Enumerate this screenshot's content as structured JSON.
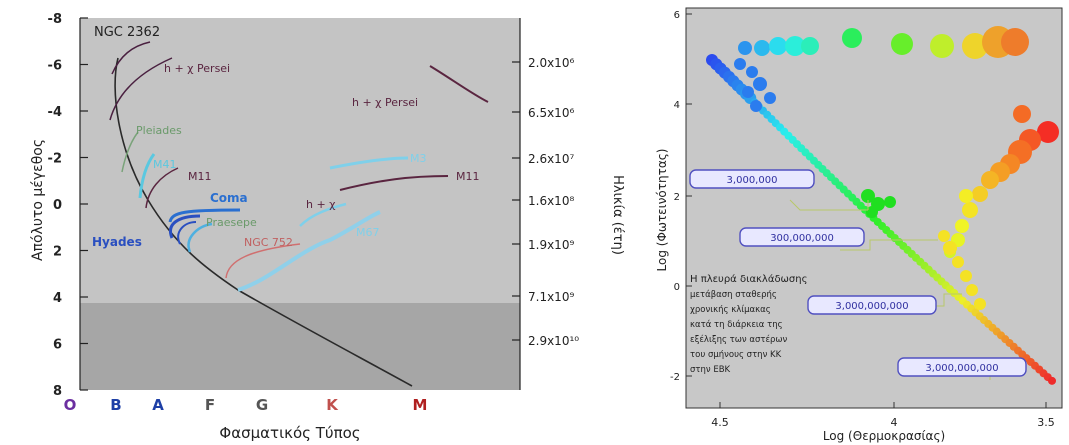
{
  "left_chart": {
    "ylabel": "Απόλυτο μέγεθος",
    "xlabel": "Φασματικός Τύπος",
    "right_label": "Ηλικία (έτη)",
    "y_ticks": [
      "-8",
      "-6",
      "-4",
      "-2",
      "0",
      "2",
      "4",
      "6",
      "8"
    ],
    "age_ticks": [
      "2.0x10⁶",
      "6.5x10⁶",
      "2.6x10⁷",
      "1.6x10⁸",
      "1.9x10⁹",
      "7.1x10⁹",
      "2.9x10¹⁰"
    ],
    "spectral": [
      {
        "label": "O",
        "color": "#6b2fa0"
      },
      {
        "label": "B",
        "color": "#1d3fa6"
      },
      {
        "label": "A",
        "color": "#1d3fa6"
      },
      {
        "label": "F",
        "color": "#555555"
      },
      {
        "label": "G",
        "color": "#555555"
      },
      {
        "label": "K",
        "color": "#c0504d"
      },
      {
        "label": "M",
        "color": "#b02020"
      }
    ],
    "cluster_labels": {
      "ngc2362": "NGC 2362",
      "h_chi_1": "h + χ Persei",
      "h_chi_2": "h + χ Persei",
      "pleiades": "Pleiades",
      "m41": "M41",
      "m11a": "M11",
      "coma": "Coma",
      "praesepe": "Praesepe",
      "hyades": "Hyades",
      "ngc752": "NGC 752",
      "h_chi_3": "h + χ",
      "m67": "M67",
      "m3": "M3",
      "m11b": "M11"
    },
    "colors": {
      "upper_bg": "#c4c4c4",
      "lower_bg": "#a6a6a6"
    }
  },
  "right_chart": {
    "ylabel": "Log (Φωτεινότητας)",
    "xlabel": "Log (Θερμοκρασίας)",
    "x_ticks": [
      "4.5",
      "4",
      "3.5"
    ],
    "y_ticks": [
      "6",
      "4",
      "2",
      "0",
      "-2"
    ],
    "age_boxes": [
      "3,000,000",
      "300,000,000",
      "3,000,000,000",
      "3,000,000,000"
    ],
    "annotation": [
      "Η πλευρά διακλάδωσης",
      "μετάβαση σταθερής",
      "χρονικής κλίμακας",
      "κατά τη διάρκεια της",
      "εξέλιξης των αστέρων",
      "του σμήνους στην ΚΚ",
      "στην ΕΒΚ"
    ],
    "colors": {
      "bg": "#c8c8c8"
    }
  }
}
